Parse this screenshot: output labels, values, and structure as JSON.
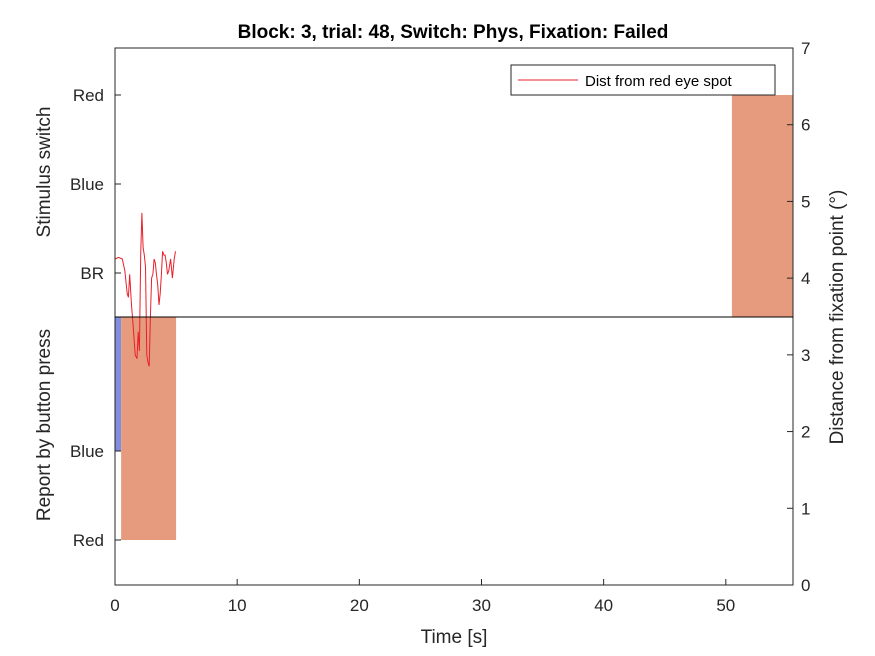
{
  "chart_data": {
    "type": "line",
    "title": "Block: 3, trial: 48, Switch: Phys, Fixation: Failed",
    "xlabel": "Time [s]",
    "ylabel_left_top": "Stimulus switch",
    "ylabel_left_bottom": "Report by button press",
    "ylabel_right": "Distance from fixation point (°)",
    "xlim": [
      0,
      55.5
    ],
    "x_ticks": [
      0,
      10,
      20,
      30,
      40,
      50
    ],
    "ylim_right": [
      0,
      7
    ],
    "y_ticks_right": [
      0,
      1,
      2,
      3,
      4,
      5,
      6,
      7
    ],
    "left_ticks_top": [
      "Red",
      "Blue",
      "BR"
    ],
    "left_ticks_bottom": [
      "Blue",
      "Red"
    ],
    "legend": {
      "entries": [
        "Dist from red eye spot"
      ],
      "location": "top-right"
    },
    "colors": {
      "red_block": "#e69b7e",
      "blue_block": "#7f8fdd",
      "line": "#e8202a",
      "divider": "#000000"
    },
    "blocks": [
      {
        "panel": "stimulus",
        "state": "Red",
        "x_start": 50.5,
        "x_end": 55.5,
        "color": "red_block"
      },
      {
        "panel": "report",
        "state": "Blue",
        "x_start": 0,
        "x_end": 0.5,
        "color": "blue_block"
      },
      {
        "panel": "report",
        "state": "Red",
        "x_start": 0.5,
        "x_end": 5.0,
        "color": "red_block"
      }
    ],
    "series": [
      {
        "name": "Dist from red eye spot",
        "x": [
          0,
          0.3,
          0.6,
          0.8,
          1.0,
          1.1,
          1.2,
          1.35,
          1.5,
          1.65,
          1.8,
          1.9,
          2.0,
          2.1,
          2.2,
          2.3,
          2.4,
          2.5,
          2.6,
          2.7,
          2.8,
          2.9,
          3.0,
          3.1,
          3.2,
          3.3,
          3.4,
          3.5,
          3.6,
          3.7,
          3.8,
          3.9,
          4.0,
          4.1,
          4.2,
          4.3,
          4.4,
          4.55,
          4.7,
          4.85,
          4.95
        ],
        "y": [
          4.25,
          4.27,
          4.25,
          4.1,
          3.8,
          3.75,
          4.05,
          3.65,
          3.35,
          3.0,
          2.95,
          3.3,
          3.05,
          4.3,
          4.85,
          4.4,
          4.3,
          4.15,
          3.0,
          2.9,
          2.85,
          3.5,
          4.0,
          4.05,
          4.25,
          4.2,
          4.05,
          3.9,
          3.65,
          3.8,
          4.05,
          4.35,
          4.3,
          4.3,
          4.2,
          4.05,
          4.1,
          4.25,
          4.0,
          4.25,
          4.35
        ]
      }
    ]
  }
}
